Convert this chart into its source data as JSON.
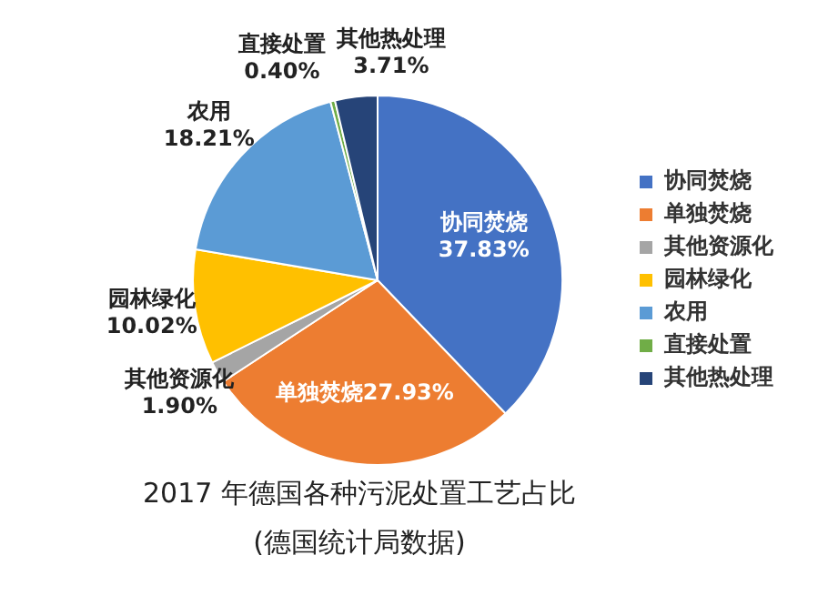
{
  "chart_data": {
    "type": "pie",
    "title": "2017 年德国各种污泥处置工艺占比",
    "subtitle": "(德国统计局数据)",
    "categories": [
      "协同焚烧",
      "单独焚烧",
      "其他资源化",
      "园林绿化",
      "农用",
      "直接处置",
      "其他热处理"
    ],
    "values": [
      37.83,
      27.93,
      1.9,
      10.02,
      18.21,
      0.4,
      3.71
    ],
    "value_labels": [
      "37.83%",
      "27.93%",
      "1.90%",
      "10.02%",
      "18.21%",
      "0.40%",
      "3.71%"
    ],
    "colors": [
      "#4472c4",
      "#ed7d31",
      "#a5a5a5",
      "#ffc000",
      "#5b9bd5",
      "#70ad47",
      "#264478"
    ],
    "legend": "right"
  }
}
